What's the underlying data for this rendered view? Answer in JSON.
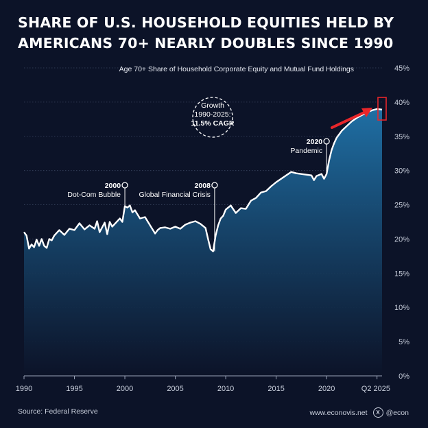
{
  "title_lines": [
    "SHARE OF U.S. HOUSEHOLD EQUITIES HELD BY",
    "AMERICANS 70+ NEARLY DOUBLES SINCE 1990"
  ],
  "footer": {
    "source": "Source: Federal Reserve",
    "website": "www.econovis.net",
    "handle": "@econ"
  },
  "colors": {
    "background": "#0c1328",
    "line": "#ffffff",
    "area_top": "#1f6fa4",
    "area_bottom": "#0c1328",
    "arrow": "#e8262a"
  },
  "chart_data": {
    "type": "area",
    "title": "Age 70+ Share of Household Corporate Equity and Mutual Fund Holdings",
    "xlabel": "",
    "ylabel": "",
    "xlim": [
      1990,
      2025.5
    ],
    "ylim": [
      0,
      45
    ],
    "x_ticks": [
      1990,
      1995,
      2000,
      2005,
      2010,
      2015,
      2020,
      2025
    ],
    "x_tick_labels": [
      "1990",
      "1995",
      "2000",
      "2005",
      "2010",
      "2015",
      "2020",
      "Q2 2025"
    ],
    "y_ticks": [
      0,
      5,
      10,
      15,
      20,
      25,
      30,
      35,
      40,
      45
    ],
    "y_tick_labels": [
      "0%",
      "5%",
      "10%",
      "15%",
      "20%",
      "25%",
      "30%",
      "35%",
      "40%",
      "45%"
    ],
    "grid": "horizontal-dotted",
    "series": [
      {
        "x": [
          1990,
          1990.25,
          1990.5,
          1990.75,
          1991,
          1991.25,
          1991.5,
          1991.75,
          1992,
          1992.25,
          1992.5,
          1992.75,
          1993,
          1993.5,
          1994,
          1994.5,
          1995,
          1995.5,
          1996,
          1996.5,
          1997,
          1997.25,
          1997.5,
          1998,
          1998.25,
          1998.5,
          1998.75,
          1999,
          1999.5,
          1999.75,
          2000,
          2000.25,
          2000.5,
          2000.75,
          2001,
          2001.5,
          2002,
          2002.5,
          2003,
          2003.25,
          2003.5,
          2004,
          2004.5,
          2005,
          2005.5,
          2006,
          2006.5,
          2007,
          2007.5,
          2008,
          2008.25,
          2008.5,
          2008.75,
          2009,
          2009.25,
          2009.5,
          2009.75,
          2010,
          2010.5,
          2011,
          2011.5,
          2012,
          2012.5,
          2013,
          2013.5,
          2014,
          2014.5,
          2015,
          2015.5,
          2016,
          2016.5,
          2017,
          2017.5,
          2018,
          2018.5,
          2018.75,
          2019,
          2019.5,
          2019.75,
          2020,
          2020.25,
          2020.5,
          2020.75,
          2021,
          2021.5,
          2022,
          2022.5,
          2023,
          2023.5,
          2024,
          2024.5,
          2025,
          2025.5
        ],
        "values": [
          21.0,
          20.5,
          18.6,
          19.2,
          18.8,
          19.9,
          19.0,
          20.0,
          19.0,
          18.7,
          20.0,
          19.8,
          20.5,
          21.3,
          20.6,
          21.5,
          21.3,
          22.3,
          21.4,
          22.0,
          21.5,
          22.6,
          21.0,
          22.4,
          20.7,
          22.5,
          21.8,
          22.2,
          23.0,
          22.5,
          24.8,
          24.6,
          24.9,
          23.9,
          24.2,
          23.0,
          23.2,
          22.0,
          20.8,
          21.3,
          21.6,
          21.7,
          21.5,
          21.8,
          21.5,
          22.1,
          22.4,
          22.6,
          22.2,
          21.6,
          20.0,
          18.5,
          18.2,
          20.5,
          22.0,
          23.0,
          23.4,
          24.3,
          24.9,
          23.8,
          24.5,
          24.4,
          25.6,
          26.0,
          26.8,
          27.0,
          27.7,
          28.3,
          28.8,
          29.3,
          29.8,
          29.6,
          29.5,
          29.4,
          29.3,
          28.6,
          29.2,
          29.5,
          28.8,
          29.5,
          31.5,
          33.0,
          34.0,
          34.8,
          35.8,
          36.5,
          37.2,
          37.7,
          38.1,
          38.5,
          38.8,
          39.0,
          38.9
        ]
      }
    ],
    "annotations": [
      {
        "x": 2000,
        "y": 24.8,
        "year": "2000",
        "label": "Dot-Com Bubble"
      },
      {
        "x": 2008.9,
        "y": 18.2,
        "year": "2008",
        "label": "Global Financial Crisis"
      },
      {
        "x": 2020,
        "y": 29.5,
        "year": "2020",
        "label": "Pandemic"
      }
    ],
    "callout": {
      "lines": [
        "Growth",
        "1990-2025:",
        "11.5% CAGR"
      ]
    }
  }
}
